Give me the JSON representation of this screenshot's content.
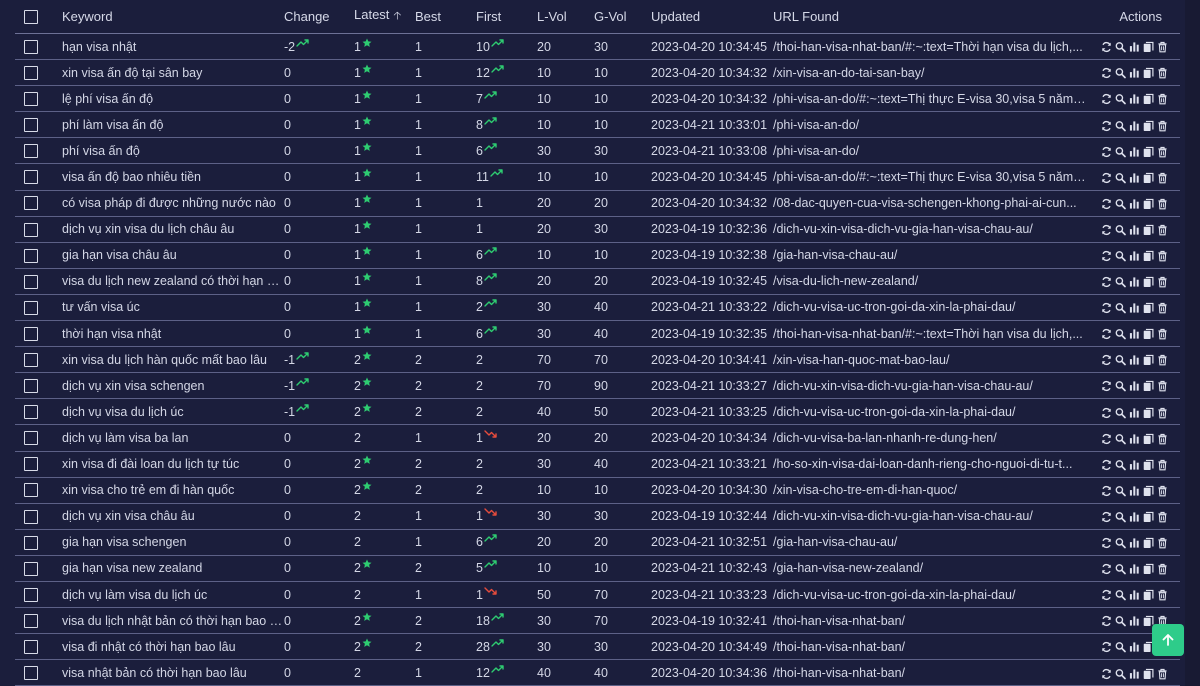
{
  "headers": {
    "keyword": "Keyword",
    "change": "Change",
    "latest": "Latest",
    "best": "Best",
    "first": "First",
    "lvol": "L-Vol",
    "gvol": "G-Vol",
    "updated": "Updated",
    "url": "URL Found",
    "actions": "Actions"
  },
  "sort": {
    "column": "latest",
    "direction": "ascending"
  },
  "colors": {
    "background": "#1b1e3c",
    "trend_up": "#2ecc71",
    "trend_down": "#e74c3c",
    "star": "#2ecc71",
    "scroll_button": "#2ecc8a"
  },
  "icons": {
    "trend_up": "trend-up-icon",
    "trend_down": "trend-down-icon",
    "star": "star-icon",
    "refresh": "refresh-icon",
    "search": "search-icon",
    "chart": "bar-chart-icon",
    "copy": "copy-icon",
    "delete": "trash-icon",
    "scroll_top": "arrow-up-icon"
  },
  "rows": [
    {
      "keyword": "hạn visa nhật",
      "change": "-2",
      "change_trend": "up",
      "latest": "1",
      "latest_star": true,
      "best": "1",
      "first": "10",
      "first_trend": "up",
      "lvol": "20",
      "gvol": "30",
      "updated": "2023-04-20 10:34:45",
      "url": "/thoi-han-visa-nhat-ban/#:~:text=Thời hạn visa du lịch,..."
    },
    {
      "keyword": "xin visa ấn độ tại sân bay",
      "change": "0",
      "change_trend": "",
      "latest": "1",
      "latest_star": true,
      "best": "1",
      "first": "12",
      "first_trend": "up",
      "lvol": "10",
      "gvol": "10",
      "updated": "2023-04-20 10:34:32",
      "url": "/xin-visa-an-do-tai-san-bay/"
    },
    {
      "keyword": "lệ phí visa ấn độ",
      "change": "0",
      "change_trend": "",
      "latest": "1",
      "latest_star": true,
      "best": "1",
      "first": "7",
      "first_trend": "up",
      "lvol": "10",
      "gvol": "10",
      "updated": "2023-04-20 10:34:32",
      "url": "/phi-visa-an-do/#:~:text=Thị thực E-visa 30,visa 5 năm: 8..."
    },
    {
      "keyword": "phí làm visa ấn độ",
      "change": "0",
      "change_trend": "",
      "latest": "1",
      "latest_star": true,
      "best": "1",
      "first": "8",
      "first_trend": "up",
      "lvol": "10",
      "gvol": "10",
      "updated": "2023-04-21 10:33:01",
      "url": "/phi-visa-an-do/"
    },
    {
      "keyword": "phí visa ấn độ",
      "change": "0",
      "change_trend": "",
      "latest": "1",
      "latest_star": true,
      "best": "1",
      "first": "6",
      "first_trend": "up",
      "lvol": "30",
      "gvol": "30",
      "updated": "2023-04-21 10:33:08",
      "url": "/phi-visa-an-do/"
    },
    {
      "keyword": "visa ấn độ bao nhiêu tiền",
      "change": "0",
      "change_trend": "",
      "latest": "1",
      "latest_star": true,
      "best": "1",
      "first": "11",
      "first_trend": "up",
      "lvol": "10",
      "gvol": "10",
      "updated": "2023-04-20 10:34:45",
      "url": "/phi-visa-an-do/#:~:text=Thị thực E-visa 30,visa 5 năm: 8..."
    },
    {
      "keyword": "có visa pháp đi được những nước nào",
      "change": "0",
      "change_trend": "",
      "latest": "1",
      "latest_star": true,
      "best": "1",
      "first": "1",
      "first_trend": "",
      "lvol": "20",
      "gvol": "20",
      "updated": "2023-04-20 10:34:32",
      "url": "/08-dac-quyen-cua-visa-schengen-khong-phai-ai-cun..."
    },
    {
      "keyword": "dịch vụ xin visa du lịch châu âu",
      "change": "0",
      "change_trend": "",
      "latest": "1",
      "latest_star": true,
      "best": "1",
      "first": "1",
      "first_trend": "",
      "lvol": "20",
      "gvol": "30",
      "updated": "2023-04-19 10:32:36",
      "url": "/dich-vu-xin-visa-dich-vu-gia-han-visa-chau-au/"
    },
    {
      "keyword": "gia hạn visa châu âu",
      "change": "0",
      "change_trend": "",
      "latest": "1",
      "latest_star": true,
      "best": "1",
      "first": "6",
      "first_trend": "up",
      "lvol": "10",
      "gvol": "10",
      "updated": "2023-04-19 10:32:38",
      "url": "/gia-han-visa-chau-au/"
    },
    {
      "keyword": "visa du lịch new zealand có thời hạn bao lâu",
      "change": "0",
      "change_trend": "",
      "latest": "1",
      "latest_star": true,
      "best": "1",
      "first": "8",
      "first_trend": "up",
      "lvol": "20",
      "gvol": "20",
      "updated": "2023-04-19 10:32:45",
      "url": "/visa-du-lich-new-zealand/"
    },
    {
      "keyword": "tư vấn visa úc",
      "change": "0",
      "change_trend": "",
      "latest": "1",
      "latest_star": true,
      "best": "1",
      "first": "2",
      "first_trend": "up",
      "lvol": "30",
      "gvol": "40",
      "updated": "2023-04-21 10:33:22",
      "url": "/dich-vu-visa-uc-tron-goi-da-xin-la-phai-dau/"
    },
    {
      "keyword": "thời hạn visa nhật",
      "change": "0",
      "change_trend": "",
      "latest": "1",
      "latest_star": true,
      "best": "1",
      "first": "6",
      "first_trend": "up",
      "lvol": "30",
      "gvol": "40",
      "updated": "2023-04-19 10:32:35",
      "url": "/thoi-han-visa-nhat-ban/#:~:text=Thời hạn visa du lịch,..."
    },
    {
      "keyword": "xin visa du lịch hàn quốc mất bao lâu",
      "change": "-1",
      "change_trend": "up",
      "latest": "2",
      "latest_star": true,
      "best": "2",
      "first": "2",
      "first_trend": "",
      "lvol": "70",
      "gvol": "70",
      "updated": "2023-04-20 10:34:41",
      "url": "/xin-visa-han-quoc-mat-bao-lau/"
    },
    {
      "keyword": "dịch vụ xin visa schengen",
      "change": "-1",
      "change_trend": "up",
      "latest": "2",
      "latest_star": true,
      "best": "2",
      "first": "2",
      "first_trend": "",
      "lvol": "70",
      "gvol": "90",
      "updated": "2023-04-21 10:33:27",
      "url": "/dich-vu-xin-visa-dich-vu-gia-han-visa-chau-au/"
    },
    {
      "keyword": "dịch vụ visa du lịch úc",
      "change": "-1",
      "change_trend": "up",
      "latest": "2",
      "latest_star": true,
      "best": "2",
      "first": "2",
      "first_trend": "",
      "lvol": "40",
      "gvol": "50",
      "updated": "2023-04-21 10:33:25",
      "url": "/dich-vu-visa-uc-tron-goi-da-xin-la-phai-dau/"
    },
    {
      "keyword": "dịch vụ làm visa ba lan",
      "change": "0",
      "change_trend": "",
      "latest": "2",
      "latest_star": false,
      "best": "1",
      "first": "1",
      "first_trend": "down",
      "lvol": "20",
      "gvol": "20",
      "updated": "2023-04-20 10:34:34",
      "url": "/dich-vu-visa-ba-lan-nhanh-re-dung-hen/"
    },
    {
      "keyword": "xin visa đi đài loan du lịch tự túc",
      "change": "0",
      "change_trend": "",
      "latest": "2",
      "latest_star": true,
      "best": "2",
      "first": "2",
      "first_trend": "",
      "lvol": "30",
      "gvol": "40",
      "updated": "2023-04-21 10:33:21",
      "url": "/ho-so-xin-visa-dai-loan-danh-rieng-cho-nguoi-di-tu-t..."
    },
    {
      "keyword": "xin visa cho trẻ em đi hàn quốc",
      "change": "0",
      "change_trend": "",
      "latest": "2",
      "latest_star": true,
      "best": "2",
      "first": "2",
      "first_trend": "",
      "lvol": "10",
      "gvol": "10",
      "updated": "2023-04-20 10:34:30",
      "url": "/xin-visa-cho-tre-em-di-han-quoc/"
    },
    {
      "keyword": "dịch vụ xin visa châu âu",
      "change": "0",
      "change_trend": "",
      "latest": "2",
      "latest_star": false,
      "best": "1",
      "first": "1",
      "first_trend": "down",
      "lvol": "30",
      "gvol": "30",
      "updated": "2023-04-19 10:32:44",
      "url": "/dich-vu-xin-visa-dich-vu-gia-han-visa-chau-au/"
    },
    {
      "keyword": "gia hạn visa schengen",
      "change": "0",
      "change_trend": "",
      "latest": "2",
      "latest_star": false,
      "best": "1",
      "first": "6",
      "first_trend": "up",
      "lvol": "20",
      "gvol": "20",
      "updated": "2023-04-21 10:32:51",
      "url": "/gia-han-visa-chau-au/"
    },
    {
      "keyword": "gia hạn visa new zealand",
      "change": "0",
      "change_trend": "",
      "latest": "2",
      "latest_star": true,
      "best": "2",
      "first": "5",
      "first_trend": "up",
      "lvol": "10",
      "gvol": "10",
      "updated": "2023-04-21 10:32:43",
      "url": "/gia-han-visa-new-zealand/"
    },
    {
      "keyword": "dịch vụ làm visa du lịch úc",
      "change": "0",
      "change_trend": "",
      "latest": "2",
      "latest_star": false,
      "best": "1",
      "first": "1",
      "first_trend": "down",
      "lvol": "50",
      "gvol": "70",
      "updated": "2023-04-21 10:33:23",
      "url": "/dich-vu-visa-uc-tron-goi-da-xin-la-phai-dau/"
    },
    {
      "keyword": "visa du lịch nhật bản có thời hạn bao lâu",
      "change": "0",
      "change_trend": "",
      "latest": "2",
      "latest_star": true,
      "best": "2",
      "first": "18",
      "first_trend": "up",
      "lvol": "30",
      "gvol": "70",
      "updated": "2023-04-19 10:32:41",
      "url": "/thoi-han-visa-nhat-ban/"
    },
    {
      "keyword": "visa đi nhật có thời hạn bao lâu",
      "change": "0",
      "change_trend": "",
      "latest": "2",
      "latest_star": true,
      "best": "2",
      "first": "28",
      "first_trend": "up",
      "lvol": "30",
      "gvol": "30",
      "updated": "2023-04-20 10:34:49",
      "url": "/thoi-han-visa-nhat-ban/"
    },
    {
      "keyword": "visa nhật bản có thời hạn bao lâu",
      "change": "0",
      "change_trend": "",
      "latest": "2",
      "latest_star": false,
      "best": "1",
      "first": "12",
      "first_trend": "up",
      "lvol": "40",
      "gvol": "40",
      "updated": "2023-04-20 10:34:36",
      "url": "/thoi-han-visa-nhat-ban/"
    }
  ]
}
